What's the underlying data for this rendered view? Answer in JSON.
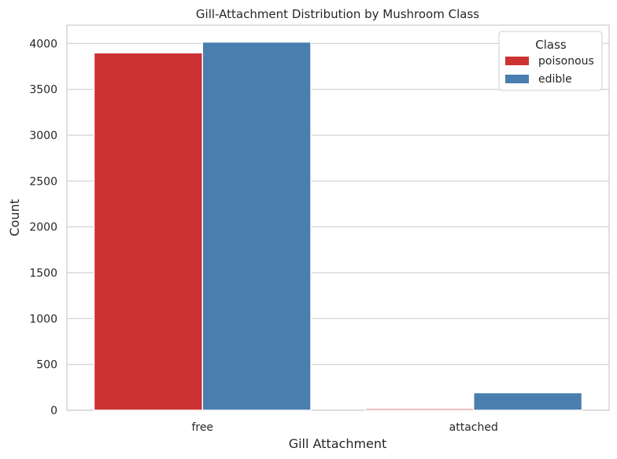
{
  "chart_data": {
    "type": "bar",
    "title": "Gill-Attachment Distribution by Mushroom Class",
    "xlabel": "Gill Attachment",
    "ylabel": "Count",
    "categories": [
      "free",
      "attached"
    ],
    "series": [
      {
        "name": "poisonous",
        "color": "#cc3232",
        "values": [
          3898,
          18
        ]
      },
      {
        "name": "edible",
        "color": "#4a7eaf",
        "values": [
          4016,
          192
        ]
      }
    ],
    "ylim": [
      0,
      4200
    ],
    "yticks": [
      0,
      500,
      1000,
      1500,
      2000,
      2500,
      3000,
      3500,
      4000
    ],
    "grid": true,
    "legend": {
      "title": "Class",
      "placement": "top-right"
    }
  }
}
